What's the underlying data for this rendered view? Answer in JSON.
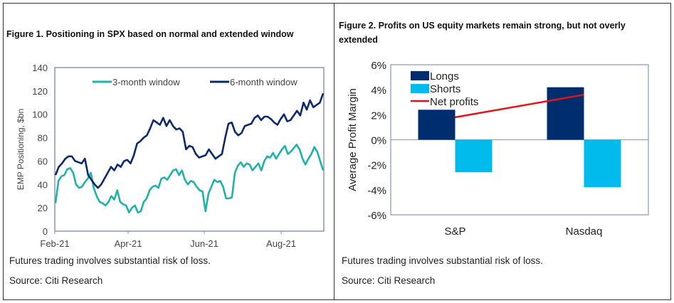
{
  "figure1": {
    "title": "Figure 1. Positioning in SPX based on normal and extended window",
    "disclaimer": "Futures trading involves substantial risk of loss.",
    "source": "Source: Citi Research"
  },
  "figure2": {
    "title_line1": "Figure 2. Profits on US equity markets remain strong, but not overly",
    "title_line2": "extended",
    "disclaimer": "Futures trading involves substantial risk of loss.",
    "source": "Source: Citi Research"
  },
  "chart_data": [
    {
      "type": "line",
      "title": "Figure 1. Positioning in SPX based on normal and extended window",
      "xlabel": "",
      "ylabel": "EMP Positioning, $bn",
      "ylim": [
        0,
        140
      ],
      "yticks": [
        "0",
        "20",
        "40",
        "60",
        "80",
        "100",
        "120",
        "140"
      ],
      "xticks": [
        "Feb-21",
        "Apr-21",
        "Jun-21",
        "Aug-21"
      ],
      "legend_placement": "top",
      "series": [
        {
          "name": "3-month window",
          "color": "#20b2aa",
          "values": [
            24,
            43,
            47,
            48,
            53,
            54,
            50,
            40,
            37,
            38,
            42,
            45,
            50,
            37,
            30,
            25,
            24,
            22,
            25,
            30,
            27,
            35,
            25,
            23,
            22,
            16,
            20,
            22,
            16,
            17,
            25,
            28,
            35,
            38,
            39,
            37,
            45,
            46,
            44,
            48,
            52,
            53,
            48,
            52,
            44,
            40,
            43,
            42,
            38,
            35,
            34,
            17,
            32,
            38,
            44,
            42,
            43,
            38,
            28,
            28,
            29,
            50,
            56,
            59,
            55,
            58,
            57,
            52,
            55,
            58,
            52,
            60,
            64,
            63,
            67,
            62,
            66,
            70,
            73,
            66,
            68,
            71,
            74,
            70,
            62,
            57,
            62,
            66,
            72,
            68,
            60,
            52
          ]
        },
        {
          "name": "6-month window",
          "color": "#0b2a6b",
          "values": [
            48,
            55,
            58,
            62,
            64,
            64,
            60,
            59,
            58,
            62,
            48,
            44,
            40,
            37,
            40,
            45,
            50,
            55,
            52,
            57,
            55,
            60,
            61,
            58,
            65,
            75,
            77,
            80,
            82,
            88,
            95,
            93,
            91,
            97,
            90,
            95,
            90,
            87,
            88,
            85,
            70,
            73,
            72,
            66,
            63,
            64,
            65,
            70,
            66,
            62,
            64,
            66,
            80,
            92,
            93,
            85,
            82,
            84,
            90,
            91,
            92,
            97,
            99,
            95,
            98,
            98,
            96,
            93,
            91,
            96,
            100,
            94,
            95,
            99,
            103,
            99,
            110,
            104,
            112,
            106,
            108,
            110,
            118
          ]
        }
      ]
    },
    {
      "type": "bar",
      "title": "Figure 2. Profits on US equity markets remain strong, but not overly extended",
      "xlabel": "",
      "ylabel": "Average Profit Margin",
      "ylim": [
        -6,
        6
      ],
      "yticks": [
        "-6%",
        "-4%",
        "-2%",
        "0%",
        "2%",
        "4%",
        "6%"
      ],
      "categories": [
        "S&P",
        "Nasdaq"
      ],
      "legend_placement": "top-left",
      "series": [
        {
          "name": "Longs",
          "type": "bar",
          "color": "#002d6e",
          "values": [
            2.4,
            4.2
          ]
        },
        {
          "name": "Shorts",
          "type": "bar",
          "color": "#00bbec",
          "values": [
            -2.6,
            -3.8
          ]
        },
        {
          "name": "Net profits",
          "type": "line",
          "color": "#e3131b",
          "values": [
            1.8,
            3.6
          ]
        }
      ]
    }
  ]
}
